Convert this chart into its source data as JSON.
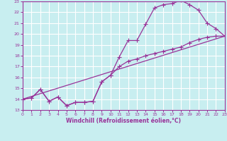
{
  "xlabel": "Windchill (Refroidissement éolien,°C)",
  "bg_color": "#c8eef0",
  "line_color": "#993399",
  "grid_color": "#ffffff",
  "xlim": [
    0,
    23
  ],
  "ylim": [
    13,
    23
  ],
  "xticks": [
    0,
    1,
    2,
    3,
    4,
    5,
    6,
    7,
    8,
    9,
    10,
    11,
    12,
    13,
    14,
    15,
    16,
    17,
    18,
    19,
    20,
    21,
    22,
    23
  ],
  "yticks": [
    13,
    14,
    15,
    16,
    17,
    18,
    19,
    20,
    21,
    22,
    23
  ],
  "line1_x": [
    0,
    1,
    2,
    3,
    4,
    5,
    6,
    7,
    8,
    9,
    10,
    11,
    12,
    13,
    14,
    15,
    16,
    17,
    18,
    19,
    20,
    21,
    22,
    23
  ],
  "line1_y": [
    14.0,
    14.1,
    14.9,
    13.8,
    14.2,
    13.4,
    13.7,
    13.7,
    13.8,
    15.6,
    16.2,
    17.9,
    19.4,
    19.4,
    20.9,
    22.4,
    22.7,
    22.8,
    23.1,
    22.7,
    22.2,
    21.0,
    20.5,
    19.8
  ],
  "line2_x": [
    0,
    1,
    2,
    3,
    4,
    5,
    6,
    7,
    8,
    9,
    10,
    11,
    12,
    13,
    14,
    15,
    16,
    17,
    18,
    19,
    20,
    21,
    22,
    23
  ],
  "line2_y": [
    14.0,
    14.1,
    14.9,
    13.8,
    14.2,
    13.4,
    13.7,
    13.7,
    13.8,
    15.6,
    16.2,
    17.0,
    17.5,
    17.7,
    18.0,
    18.2,
    18.4,
    18.6,
    18.8,
    19.2,
    19.5,
    19.7,
    19.8,
    19.8
  ],
  "line3_x": [
    0,
    23
  ],
  "line3_y": [
    14.0,
    19.8
  ],
  "marker": "+",
  "markersize": 4,
  "linewidth": 0.9
}
